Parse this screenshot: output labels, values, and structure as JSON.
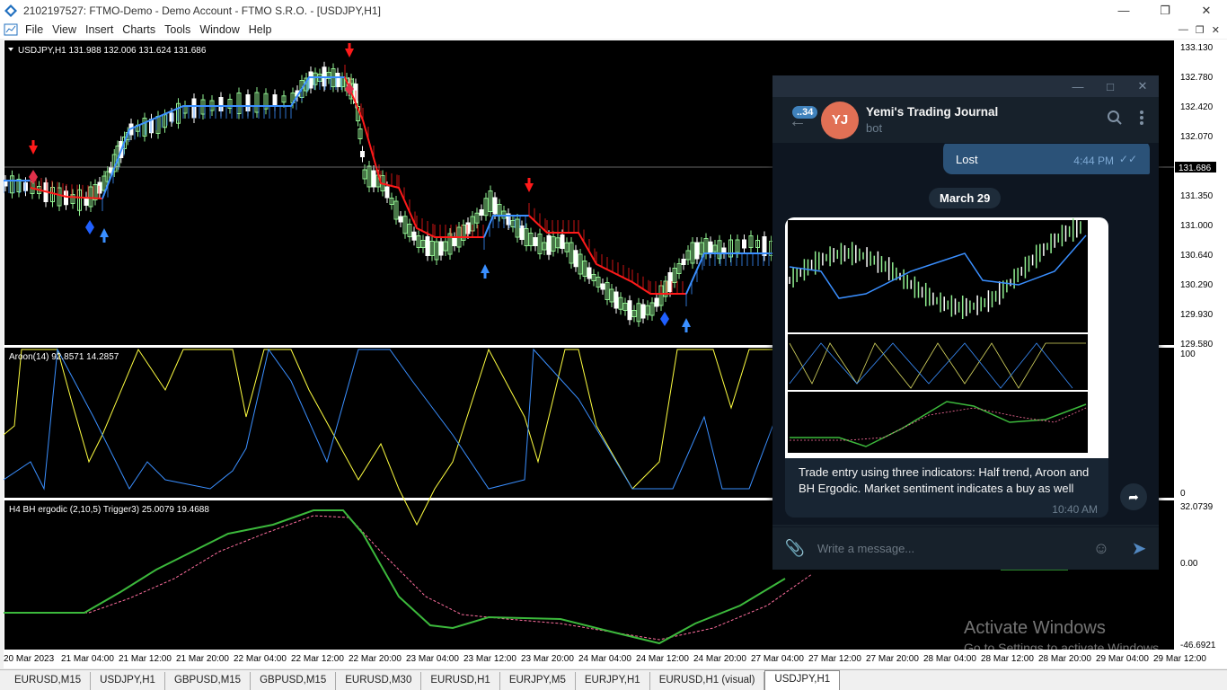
{
  "window": {
    "title": "2102197527: FTMO-Demo - Demo Account - FTMO S.R.O. - [USDJPY,H1]",
    "min_icon": "minimize-icon",
    "max_icon": "restore-icon",
    "close_icon": "close-icon"
  },
  "menu": [
    "File",
    "View",
    "Insert",
    "Charts",
    "Tools",
    "Window",
    "Help"
  ],
  "chart": {
    "header": "USDJPY,H1  131.988 132.006 131.624 131.686",
    "current_price": "131.686",
    "price_axis": [
      "133.130",
      "132.780",
      "132.420",
      "132.070",
      "131.350",
      "131.000",
      "130.640",
      "130.290",
      "129.930",
      "129.580"
    ],
    "aroon_label": "Aroon(14) 92.8571 14.2857",
    "aroon_axis": [
      "100",
      "0"
    ],
    "ergodic_label": "H4 BH ergodic (2,10,5) Trigger3) 25.0079 19.4688",
    "ergodic_axis": [
      "32.0739",
      "0.00",
      "-46.6921"
    ],
    "time_axis": [
      "20 Mar 2023",
      "21 Mar 04:00",
      "21 Mar 12:00",
      "21 Mar 20:00",
      "22 Mar 04:00",
      "22 Mar 12:00",
      "22 Mar 20:00",
      "23 Mar 04:00",
      "23 Mar 12:00",
      "23 Mar 20:00",
      "24 Mar 04:00",
      "24 Mar 12:00",
      "24 Mar 20:00",
      "27 Mar 04:00",
      "27 Mar 12:00",
      "27 Mar 20:00",
      "28 Mar 04:00",
      "28 Mar 12:00",
      "28 Mar 20:00",
      "29 Mar 04:00",
      "29 Mar 12:00"
    ],
    "colors": {
      "bull": "#90ee90",
      "bear": "#ffffff",
      "trend_up": "#3a8fff",
      "trend_down": "#ff1a1a",
      "aroon_up": "#ffff40",
      "aroon_down": "#3a8fff",
      "ergodic": "#3cb93c",
      "trigger": "#ff6f9f"
    }
  },
  "tabs": [
    "EURUSD,M15",
    "USDJPY,H1",
    "GBPUSD,M15",
    "GBPUSD,M15",
    "EURUSD,M30",
    "EURUSD,H1",
    "EURJPY,M5",
    "EURJPY,H1",
    "EURUSD,H1 (visual)",
    "USDJPY,H1"
  ],
  "active_tab": 9,
  "telegram": {
    "badge": "..34",
    "avatar_initials": "YJ",
    "chat_name": "Yemi's Trading Journal",
    "chat_sub": "bot",
    "prev_message": "Lost",
    "prev_time": "4:44 PM",
    "date_pill": "March 29",
    "caption": "Trade entry using three indicators: Half trend, Aroon and BH Ergodic. Market sentiment indicates a buy as well",
    "caption_time": "10:40 AM",
    "input_placeholder": "Write a message..."
  },
  "watermark": {
    "line1": "Activate Windows",
    "line2": "Go to Settings to activate Windows."
  }
}
